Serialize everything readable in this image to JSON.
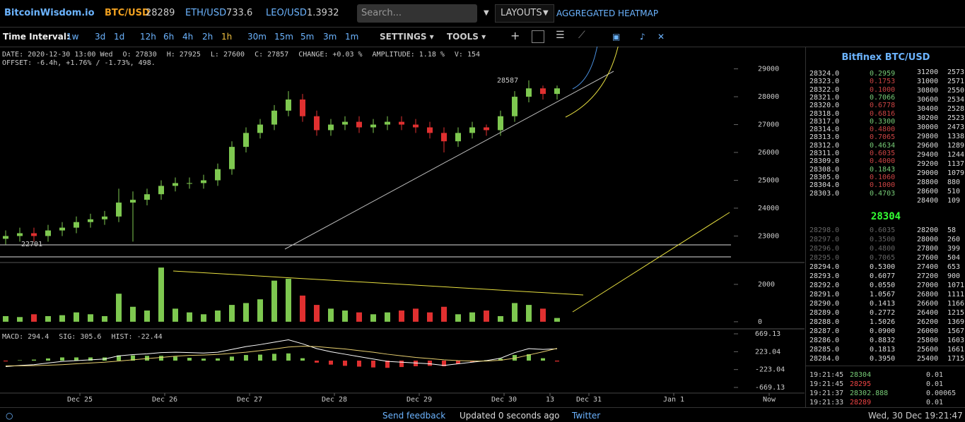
{
  "header": {
    "logo": "BitcoinWisdom.io",
    "tickers": [
      {
        "symbol": "BTC/USD",
        "price": "28289"
      },
      {
        "symbol": "ETH/USD",
        "price": "733.6"
      },
      {
        "symbol": "LEO/USD",
        "price": "1.3932"
      }
    ],
    "search_placeholder": "Search...",
    "layouts": "LAYOUTS",
    "heatmap": "AGGREGATED HEATMAP"
  },
  "toolbar": {
    "label": "Time Interval:",
    "intervals": [
      "1w",
      "3d",
      "1d",
      "12h",
      "6h",
      "4h",
      "2h",
      "1h",
      "30m",
      "15m",
      "5m",
      "3m",
      "1m"
    ],
    "settings": "SETTINGS",
    "tools": "TOOLS"
  },
  "chart": {
    "type": "candlestick",
    "info": [
      "DATE: 2020-12-30 13:00 Wed",
      "O: 27830",
      "H: 27925",
      "L: 27600",
      "C: 27857",
      "CHANGE: +0.03 %",
      "AMPLITUDE: 1.18 %",
      "V: 154"
    ],
    "offset": "OFFSET: -6.4h, +1.76% / -1.73%, 498.",
    "high_label": 28587,
    "low_label": 22701,
    "x": [
      -21,
      -17,
      -13,
      -9,
      -5,
      -1,
      3,
      7,
      11,
      15,
      19,
      23,
      27,
      31,
      35,
      39,
      43,
      47,
      51,
      55,
      59,
      63,
      67,
      71,
      75,
      79,
      83,
      87,
      91,
      95,
      99,
      103,
      107,
      111,
      115,
      119,
      123,
      127,
      131,
      135
    ],
    "candles": [
      [
        22900,
        23200,
        22701,
        23000
      ],
      [
        23000,
        23300,
        22800,
        23100
      ],
      [
        23100,
        23300,
        22800,
        23000
      ],
      [
        23000,
        23400,
        22800,
        23200
      ],
      [
        23200,
        23500,
        23000,
        23300
      ],
      [
        23300,
        23700,
        23100,
        23500
      ],
      [
        23500,
        23800,
        23300,
        23600
      ],
      [
        23600,
        23900,
        23400,
        23700
      ],
      [
        23700,
        24700,
        23500,
        24200
      ],
      [
        24200,
        24600,
        22800,
        24300
      ],
      [
        24300,
        24700,
        24100,
        24500
      ],
      [
        24500,
        25000,
        24300,
        24800
      ],
      [
        24800,
        25100,
        24600,
        24900
      ],
      [
        24900,
        25100,
        24700,
        24900
      ],
      [
        24900,
        25200,
        24700,
        25000
      ],
      [
        25000,
        25600,
        24800,
        25400
      ],
      [
        25400,
        26400,
        25200,
        26200
      ],
      [
        26200,
        26900,
        26000,
        26700
      ],
      [
        26700,
        27200,
        26500,
        27000
      ],
      [
        27000,
        27700,
        26800,
        27500
      ],
      [
        27500,
        28200,
        27300,
        27900
      ],
      [
        27900,
        28100,
        27100,
        27300
      ],
      [
        27300,
        27500,
        26600,
        26800
      ],
      [
        26800,
        27200,
        26600,
        27000
      ],
      [
        27000,
        27300,
        26800,
        27100
      ],
      [
        27100,
        27300,
        26700,
        26900
      ],
      [
        26900,
        27200,
        26700,
        27000
      ],
      [
        27000,
        27300,
        26800,
        27100
      ],
      [
        27100,
        27300,
        26800,
        27000
      ],
      [
        27000,
        27200,
        26700,
        26900
      ],
      [
        26900,
        27100,
        26500,
        26700
      ],
      [
        26700,
        26900,
        26000,
        26400
      ],
      [
        26400,
        26900,
        26200,
        26700
      ],
      [
        26700,
        27100,
        26500,
        26900
      ],
      [
        26900,
        27000,
        26600,
        26800
      ],
      [
        26800,
        27500,
        26600,
        27300
      ],
      [
        27300,
        28200,
        27100,
        28000
      ],
      [
        28000,
        28587,
        27800,
        28300
      ],
      [
        28300,
        28400,
        27900,
        28100
      ],
      [
        28100,
        28400,
        27900,
        28300
      ]
    ],
    "xlim": [
      -22.6,
      205
    ],
    "xticks": [
      {
        "value": 0,
        "label": "Dec 25"
      },
      {
        "value": 24,
        "label": "Dec 26"
      },
      {
        "value": 48,
        "label": "Dec 27"
      },
      {
        "value": 72,
        "label": "Dec 28"
      },
      {
        "value": 96,
        "label": "Dec 29"
      },
      {
        "value": 120,
        "label": "Dec 30"
      },
      {
        "value": 133,
        "label": "13"
      },
      {
        "value": 144,
        "label": "Dec 31"
      },
      {
        "value": 168,
        "label": "Jan 1"
      },
      {
        "value": 195,
        "label": "Now"
      }
    ],
    "ylim": [
      22150,
      29800
    ],
    "yticks": [
      23000,
      24000,
      25000,
      26000,
      27000,
      28000,
      29000
    ],
    "up_color": "#7ec850",
    "down_color": "#e03030",
    "volume": {
      "values": [
        300,
        250,
        400,
        300,
        350,
        500,
        400,
        300,
        1500,
        800,
        600,
        2900,
        700,
        500,
        400,
        600,
        900,
        1000,
        1200,
        2200,
        2300,
        1400,
        900,
        700,
        600,
        500,
        400,
        500,
        600,
        700,
        500,
        800,
        400,
        500,
        600,
        300,
        1000,
        900,
        700,
        200
      ],
      "ylim": [
        -230,
        3170
      ],
      "yticks": [
        0,
        2000
      ]
    },
    "macd": {
      "info": [
        "MACD: 294.4",
        "SIG: 305.6",
        "HIST: -22.44"
      ],
      "macd": [
        -150,
        -120,
        -100,
        -60,
        -20,
        0,
        20,
        40,
        120,
        150,
        170,
        200,
        210,
        200,
        190,
        210,
        280,
        350,
        400,
        460,
        520,
        420,
        300,
        220,
        160,
        100,
        40,
        -20,
        -40,
        -60,
        -80,
        -120,
        -80,
        -40,
        0,
        60,
        200,
        300,
        280,
        294.4
      ],
      "signal": [
        -130,
        -130,
        -125,
        -115,
        -100,
        -80,
        -60,
        -40,
        -10,
        20,
        50,
        80,
        110,
        130,
        140,
        155,
        180,
        210,
        250,
        290,
        340,
        360,
        350,
        320,
        290,
        250,
        210,
        160,
        120,
        80,
        50,
        20,
        0,
        -10,
        -10,
        10,
        60,
        140,
        220,
        305.6
      ],
      "hist": [
        -20,
        10,
        25,
        55,
        80,
        80,
        80,
        80,
        130,
        130,
        120,
        120,
        100,
        70,
        50,
        55,
        100,
        140,
        150,
        170,
        180,
        60,
        -50,
        -100,
        -130,
        -150,
        -170,
        -180,
        -160,
        -140,
        -130,
        -140,
        -80,
        -30,
        10,
        50,
        140,
        160,
        60,
        -22.44
      ],
      "macd_color": "#ffffff",
      "signal_color": "#e8d070",
      "ylim": [
        -810,
        793
      ],
      "yticks": [
        -669.13,
        -223.04,
        223.04,
        669.13
      ]
    }
  },
  "orderbook": {
    "title": "Bitfinex BTC/USD",
    "asks": [
      [
        "28324.0",
        "0.2959"
      ],
      [
        "28323.0",
        "0.1753"
      ],
      [
        "28322.0",
        "0.1000"
      ],
      [
        "28321.0",
        "0.7066"
      ],
      [
        "28320.0",
        "0.6778"
      ],
      [
        "28318.0",
        "0.6816"
      ],
      [
        "28317.0",
        "0.3300"
      ],
      [
        "28314.0",
        "0.4800"
      ],
      [
        "28313.0",
        "0.7065"
      ],
      [
        "28312.0",
        "0.4634"
      ],
      [
        "28311.0",
        "0.6035"
      ],
      [
        "28309.0",
        "0.4000"
      ],
      [
        "28308.0",
        "0.1843"
      ],
      [
        "28305.0",
        "0.1060"
      ],
      [
        "28304.0",
        "0.1000"
      ],
      [
        "28303.0",
        "0.4703"
      ]
    ],
    "ask_totals": [
      [
        "31200",
        "2573"
      ],
      [
        "31000",
        "2571"
      ],
      [
        "30800",
        "2550"
      ],
      [
        "30600",
        "2534"
      ],
      [
        "30400",
        "2528"
      ],
      [
        "30200",
        "2523"
      ],
      [
        "30000",
        "2473"
      ],
      [
        "29800",
        "1338"
      ],
      [
        "29600",
        "1289"
      ],
      [
        "29400",
        "1244"
      ],
      [
        "29200",
        "1137"
      ],
      [
        "29000",
        "1079"
      ],
      [
        "28800",
        "880"
      ],
      [
        "28600",
        "510"
      ],
      [
        "28400",
        "109"
      ]
    ],
    "mid": "28304",
    "bids": [
      [
        "28298.0",
        "0.6035"
      ],
      [
        "28297.0",
        "0.3500"
      ],
      [
        "28296.0",
        "0.4800"
      ],
      [
        "28295.0",
        "0.7065"
      ],
      [
        "28294.0",
        "0.5300"
      ],
      [
        "28293.0",
        "0.6077"
      ],
      [
        "28292.0",
        "0.0550"
      ],
      [
        "28291.0",
        "1.0567"
      ],
      [
        "28290.0",
        "0.1413"
      ],
      [
        "28289.0",
        "0.2772"
      ],
      [
        "28288.0",
        "1.5026"
      ],
      [
        "28287.0",
        "0.0900"
      ],
      [
        "28286.0",
        "0.8832"
      ],
      [
        "28285.0",
        "0.1813"
      ],
      [
        "28284.0",
        "0.3950"
      ]
    ],
    "bid_totals": [
      [
        "28200",
        "58"
      ],
      [
        "28000",
        "260"
      ],
      [
        "27800",
        "399"
      ],
      [
        "27600",
        "504"
      ],
      [
        "27400",
        "653"
      ],
      [
        "27200",
        "900"
      ],
      [
        "27000",
        "1071"
      ],
      [
        "26800",
        "1111"
      ],
      [
        "26600",
        "1166"
      ],
      [
        "26400",
        "1215"
      ],
      [
        "26200",
        "1369"
      ],
      [
        "26000",
        "1567"
      ],
      [
        "25800",
        "1603"
      ],
      [
        "25600",
        "1661"
      ],
      [
        "25400",
        "1715"
      ]
    ],
    "trades": [
      [
        "19:21:45",
        "28304",
        "0.01"
      ],
      [
        "19:21:45",
        "28295",
        "0.01"
      ],
      [
        "19:21:37",
        "28302.888",
        "0.00065"
      ],
      [
        "19:21:33",
        "28289",
        "0.01"
      ]
    ]
  },
  "footer": {
    "feedback": "Send feedback",
    "updated": "Updated 0 seconds ago",
    "twitter": "Twitter",
    "clock": "Wed, 30 Dec 19:21:47"
  }
}
